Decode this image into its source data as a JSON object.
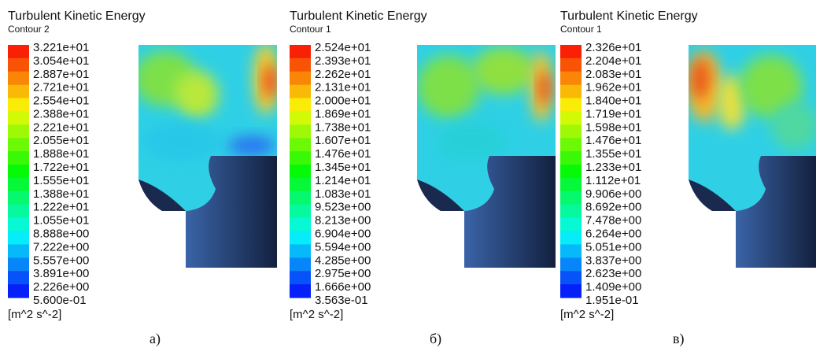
{
  "panels": [
    {
      "title": "Turbulent Kinetic Energy",
      "subtitle": "Contour 2",
      "levels": [
        "3.221e+01",
        "3.054e+01",
        "2.887e+01",
        "2.721e+01",
        "2.554e+01",
        "2.388e+01",
        "2.221e+01",
        "2.055e+01",
        "1.888e+01",
        "1.722e+01",
        "1.555e+01",
        "1.388e+01",
        "1.222e+01",
        "1.055e+01",
        "8.888e+00",
        "7.222e+00",
        "5.557e+00",
        "3.891e+00",
        "2.226e+00",
        "5.600e-01"
      ],
      "unit": "[m^2 s^-2]",
      "caption": "а)"
    },
    {
      "title": "Turbulent Kinetic Energy",
      "subtitle": "Contour 1",
      "levels": [
        "2.524e+01",
        "2.393e+01",
        "2.262e+01",
        "2.131e+01",
        "2.000e+01",
        "1.869e+01",
        "1.738e+01",
        "1.607e+01",
        "1.476e+01",
        "1.345e+01",
        "1.214e+01",
        "1.083e+01",
        "9.523e+00",
        "8.213e+00",
        "6.904e+00",
        "5.594e+00",
        "4.285e+00",
        "2.975e+00",
        "1.666e+00",
        "3.563e-01"
      ],
      "unit": "[m^2 s^-2]",
      "caption": "б)"
    },
    {
      "title": "Turbulent Kinetic Energy",
      "subtitle": "Contour 1",
      "levels": [
        "2.326e+01",
        "2.204e+01",
        "2.083e+01",
        "1.962e+01",
        "1.840e+01",
        "1.719e+01",
        "1.598e+01",
        "1.476e+01",
        "1.355e+01",
        "1.233e+01",
        "1.112e+01",
        "9.906e+00",
        "8.692e+00",
        "7.478e+00",
        "6.264e+00",
        "5.051e+00",
        "3.837e+00",
        "2.623e+00",
        "1.409e+00",
        "1.951e-01"
      ],
      "unit": "[m^2 s^-2]",
      "caption": "в)"
    }
  ]
}
